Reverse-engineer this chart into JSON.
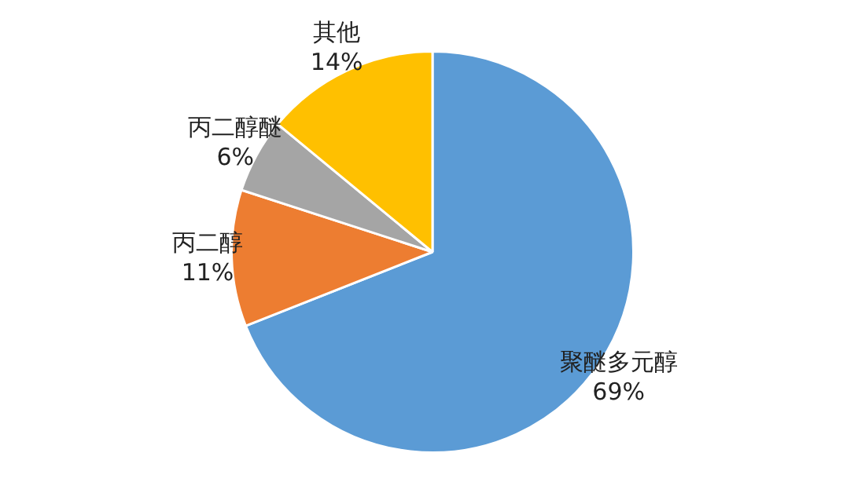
{
  "chart_data": {
    "type": "pie",
    "categories": [
      "聚醚多元醇",
      "丙二醇",
      "丙二醇醚",
      "其他"
    ],
    "values": [
      69,
      11,
      6,
      14
    ],
    "colors": [
      "#5b9bd5",
      "#ed7d31",
      "#a5a5a5",
      "#ffc000"
    ],
    "value_labels": [
      "69%",
      "11%",
      "6%",
      "14%"
    ],
    "legend": false
  }
}
